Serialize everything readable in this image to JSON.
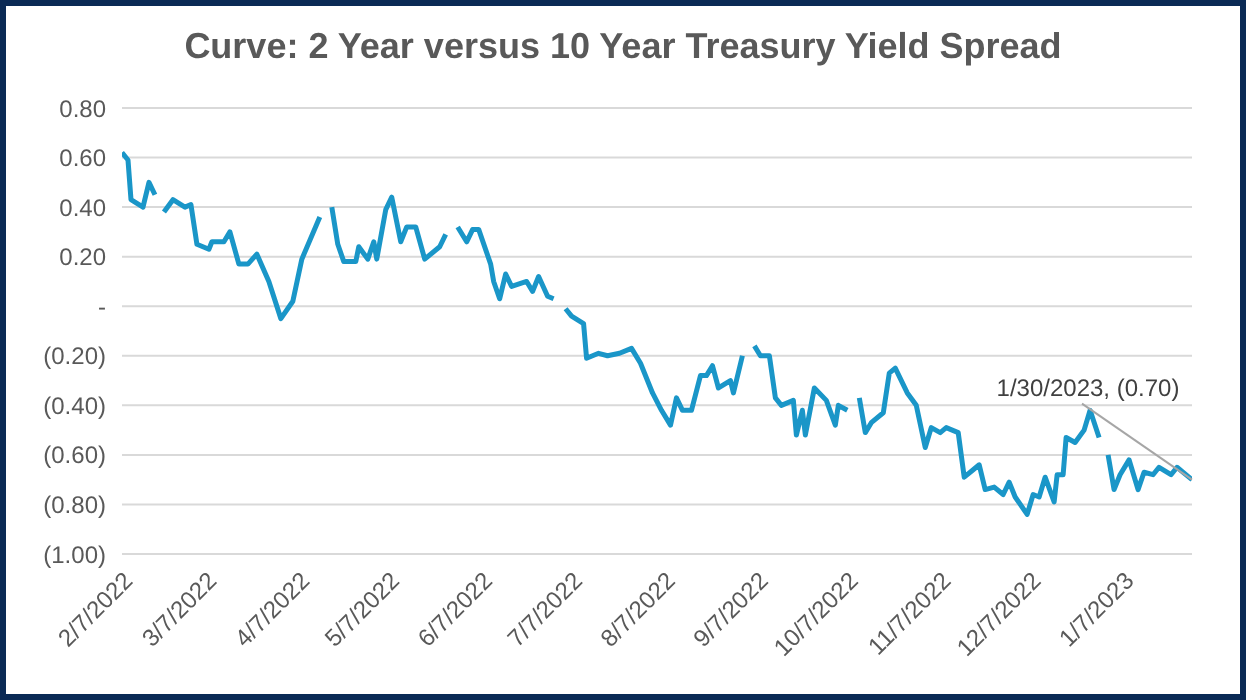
{
  "chart_data": {
    "type": "line",
    "title": "Curve: 2 Year versus 10 Year Treasury Yield Spread",
    "x": [
      "2022-02-07",
      "2022-02-09",
      "2022-02-10",
      "2022-02-14",
      "2022-02-16",
      "2022-02-18",
      "2022-02-19",
      "2022-02-21",
      "2022-02-24",
      "2022-02-28",
      "2022-03-02",
      "2022-03-04",
      "2022-03-08",
      "2022-03-09",
      "2022-03-13",
      "2022-03-15",
      "2022-03-18",
      "2022-03-21",
      "2022-03-24",
      "2022-03-28",
      "2022-04-01",
      "2022-04-05",
      "2022-04-08",
      "2022-04-14",
      "2022-04-16",
      "2022-04-18",
      "2022-04-20",
      "2022-04-22",
      "2022-04-26",
      "2022-04-27",
      "2022-04-30",
      "2022-05-02",
      "2022-05-03",
      "2022-05-06",
      "2022-05-08",
      "2022-05-11",
      "2022-05-13",
      "2022-05-16",
      "2022-05-19",
      "2022-05-24",
      "2022-05-26",
      "2022-05-28",
      "2022-05-30",
      "2022-06-02",
      "2022-06-04",
      "2022-06-06",
      "2022-06-10",
      "2022-06-11",
      "2022-06-13",
      "2022-06-15",
      "2022-06-17",
      "2022-06-22",
      "2022-06-24",
      "2022-06-26",
      "2022-06-29",
      "2022-07-01",
      "2022-07-03",
      "2022-07-05",
      "2022-07-07",
      "2022-07-11",
      "2022-07-12",
      "2022-07-16",
      "2022-07-19",
      "2022-07-23",
      "2022-07-27",
      "2022-07-30",
      "2022-08-03",
      "2022-08-06",
      "2022-08-09",
      "2022-08-11",
      "2022-08-13",
      "2022-08-16",
      "2022-08-19",
      "2022-08-21",
      "2022-08-23",
      "2022-08-25",
      "2022-08-29",
      "2022-08-30",
      "2022-09-02",
      "2022-09-04",
      "2022-09-06",
      "2022-09-08",
      "2022-09-11",
      "2022-09-13",
      "2022-09-15",
      "2022-09-19",
      "2022-09-20",
      "2022-09-22",
      "2022-09-23",
      "2022-09-26",
      "2022-09-30",
      "2022-10-03",
      "2022-10-04",
      "2022-10-07",
      "2022-10-09",
      "2022-10-11",
      "2022-10-13",
      "2022-10-15",
      "2022-10-19",
      "2022-10-21",
      "2022-10-23",
      "2022-10-27",
      "2022-10-30",
      "2022-11-02",
      "2022-11-04",
      "2022-11-07",
      "2022-11-09",
      "2022-11-13",
      "2022-11-15",
      "2022-11-18",
      "2022-11-20",
      "2022-11-22",
      "2022-11-25",
      "2022-11-28",
      "2022-11-30",
      "2022-12-02",
      "2022-12-06",
      "2022-12-08",
      "2022-12-10",
      "2022-12-12",
      "2022-12-15",
      "2022-12-16",
      "2022-12-18",
      "2022-12-19",
      "2022-12-22",
      "2022-12-25",
      "2022-12-27",
      "2022-12-30",
      "2022-12-31",
      "2023-01-02",
      "2023-01-04",
      "2023-01-06",
      "2023-01-09",
      "2023-01-12",
      "2023-01-14",
      "2023-01-17",
      "2023-01-19",
      "2023-01-23",
      "2023-01-25",
      "2023-01-30"
    ],
    "series": [
      {
        "color": "#1a96c8",
        "values": [
          0.62,
          0.59,
          0.43,
          0.4,
          0.5,
          0.45,
          null,
          0.38,
          0.43,
          0.4,
          0.41,
          0.25,
          0.23,
          0.26,
          0.26,
          0.3,
          0.17,
          0.17,
          0.21,
          0.1,
          -0.05,
          0.02,
          0.19,
          0.36,
          null,
          0.4,
          0.25,
          0.18,
          0.18,
          0.24,
          0.19,
          0.26,
          0.19,
          0.39,
          0.44,
          0.26,
          0.32,
          0.32,
          0.19,
          0.24,
          0.29,
          null,
          0.32,
          0.26,
          0.31,
          0.31,
          0.17,
          0.1,
          0.03,
          0.13,
          0.08,
          0.1,
          0.06,
          0.12,
          0.04,
          0.03,
          null,
          -0.01,
          -0.04,
          -0.07,
          -0.21,
          -0.19,
          -0.2,
          -0.19,
          -0.17,
          -0.23,
          -0.35,
          -0.42,
          -0.48,
          -0.37,
          -0.42,
          -0.42,
          -0.28,
          -0.28,
          -0.24,
          -0.33,
          -0.3,
          -0.35,
          -0.2,
          null,
          -0.16,
          -0.2,
          -0.2,
          -0.37,
          -0.4,
          -0.38,
          -0.52,
          -0.42,
          -0.52,
          -0.33,
          -0.38,
          -0.48,
          -0.4,
          -0.42,
          null,
          -0.37,
          -0.51,
          -0.47,
          -0.43,
          -0.27,
          -0.25,
          -0.35,
          -0.4,
          -0.57,
          -0.49,
          -0.51,
          -0.49,
          -0.51,
          -0.69,
          -0.66,
          -0.64,
          -0.74,
          -0.73,
          -0.76,
          -0.71,
          -0.77,
          -0.84,
          -0.76,
          -0.77,
          -0.69,
          -0.79,
          -0.68,
          -0.68,
          -0.53,
          -0.55,
          -0.5,
          -0.42,
          -0.53,
          null,
          -0.6,
          -0.74,
          -0.68,
          -0.62,
          -0.74,
          -0.67,
          -0.68,
          -0.65,
          -0.68,
          -0.65,
          -0.7
        ]
      }
    ],
    "xlim": [
      "2022-02-07",
      "2023-01-30"
    ],
    "xticks": [
      {
        "value": "2022-02-07",
        "label": "2/7/2022"
      },
      {
        "value": "2022-03-07",
        "label": "3/7/2022"
      },
      {
        "value": "2022-04-07",
        "label": "4/7/2022"
      },
      {
        "value": "2022-05-07",
        "label": "5/7/2022"
      },
      {
        "value": "2022-06-07",
        "label": "6/7/2022"
      },
      {
        "value": "2022-07-07",
        "label": "7/7/2022"
      },
      {
        "value": "2022-08-07",
        "label": "8/7/2022"
      },
      {
        "value": "2022-09-07",
        "label": "9/7/2022"
      },
      {
        "value": "2022-10-07",
        "label": "10/7/2022"
      },
      {
        "value": "2022-11-07",
        "label": "11/7/2022"
      },
      {
        "value": "2022-12-07",
        "label": "12/7/2022"
      },
      {
        "value": "2023-01-07",
        "label": "1/7/2023"
      }
    ],
    "ylim": [
      -1.0,
      0.8
    ],
    "yticks": [
      {
        "value": 0.8,
        "label": "0.80"
      },
      {
        "value": 0.6,
        "label": "0.60"
      },
      {
        "value": 0.4,
        "label": "0.40"
      },
      {
        "value": 0.2,
        "label": "0.20"
      },
      {
        "value": 0,
        "label": "-"
      },
      {
        "value": -0.2,
        "label": "(0.20)"
      },
      {
        "value": -0.4,
        "label": "(0.40)"
      },
      {
        "value": -0.6,
        "label": "(0.60)"
      },
      {
        "value": -0.8,
        "label": "(0.80)"
      },
      {
        "value": -1.0,
        "label": "(1.00)"
      }
    ],
    "grid": "y",
    "annotations": [
      {
        "text": "1/30/2023,  (0.70)",
        "x": "2023-01-30",
        "y": -0.7
      }
    ]
  }
}
